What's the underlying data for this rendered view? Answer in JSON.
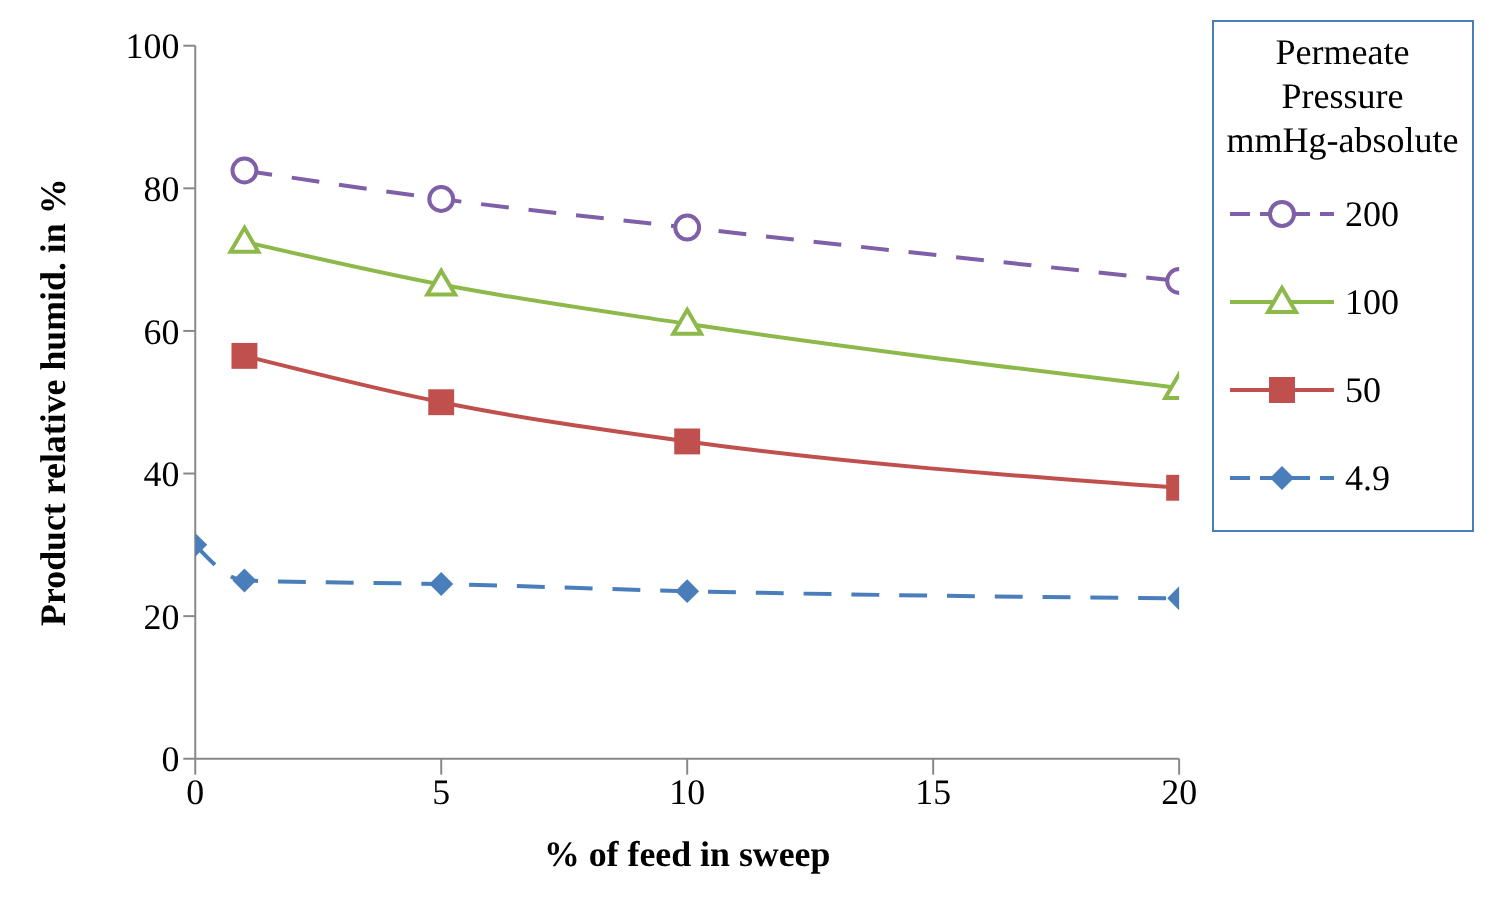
{
  "chart_data": {
    "type": "line",
    "xlabel": "% of feed in sweep",
    "ylabel": "Product relative humid. in %",
    "legend_title": "Permeate Pressure mmHg-absolute",
    "legend": "right",
    "xlim": [
      0,
      20
    ],
    "xticks": [
      0,
      5,
      10,
      15,
      20
    ],
    "ylim": [
      0,
      100
    ],
    "yticks": [
      0,
      20,
      40,
      60,
      80,
      100
    ],
    "series": [
      {
        "name": "200",
        "color": "#7f5fa8",
        "marker": "circle",
        "line_style": "dashed",
        "x": [
          1,
          5,
          10,
          20
        ],
        "values": [
          82.5,
          78.5,
          74.5,
          67
        ]
      },
      {
        "name": "100",
        "color": "#8db84a",
        "marker": "triangle",
        "line_style": "solid",
        "x": [
          1,
          5,
          10,
          20
        ],
        "values": [
          72.5,
          66.5,
          61,
          52
        ]
      },
      {
        "name": "50",
        "color": "#c0504d",
        "marker": "square",
        "line_style": "solid",
        "x": [
          1,
          5,
          10,
          20
        ],
        "values": [
          56.5,
          50,
          44.5,
          38
        ]
      },
      {
        "name": "4.9",
        "color": "#4a7ebb",
        "marker": "diamond",
        "line_style": "dashed",
        "x": [
          0,
          1,
          5,
          10,
          20
        ],
        "values": [
          30,
          25,
          24.5,
          23.5,
          22.5
        ]
      }
    ]
  }
}
